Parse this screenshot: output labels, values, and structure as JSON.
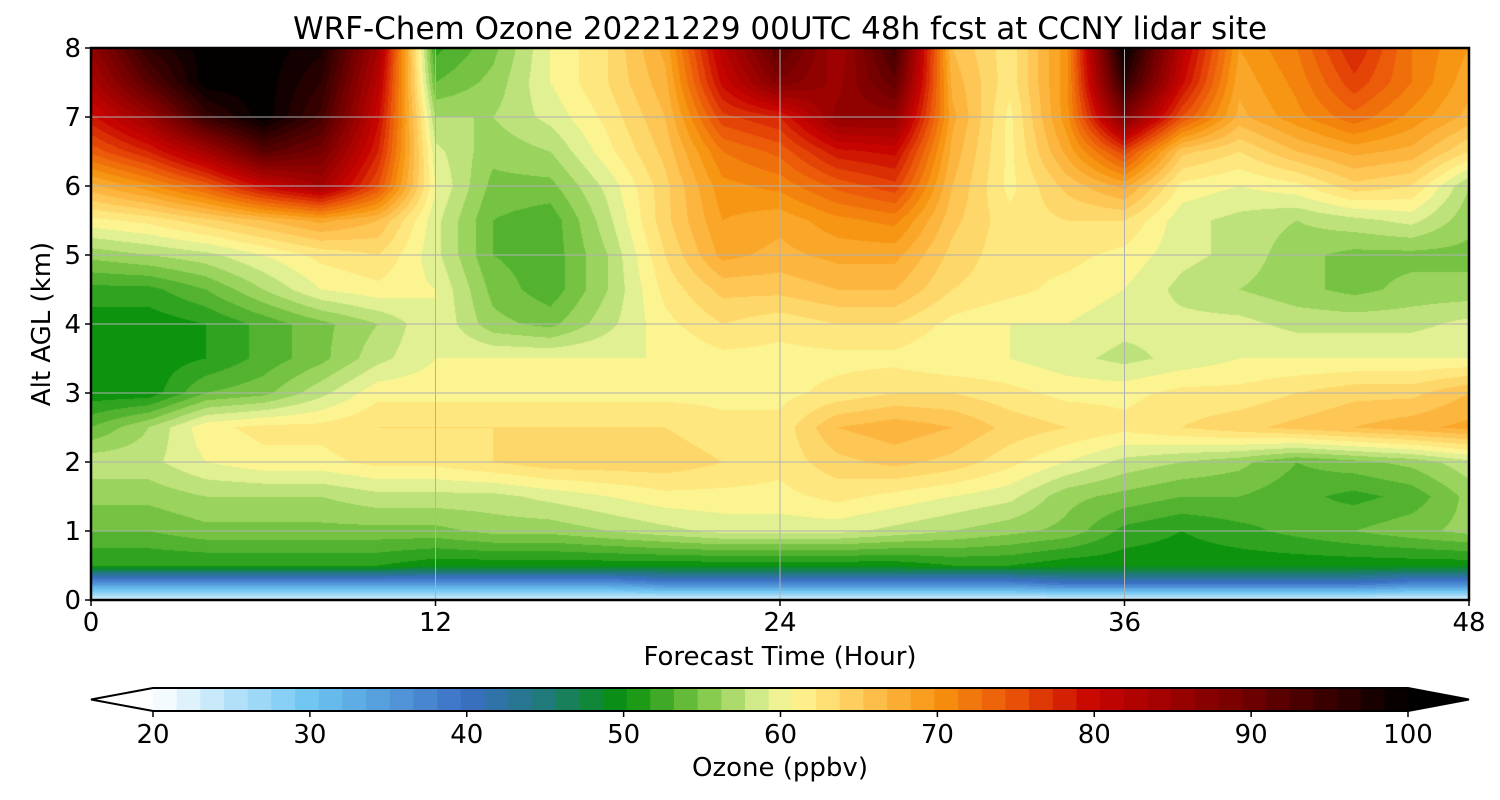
{
  "chart_data": {
    "type": "heatmap",
    "title": "WRF-Chem Ozone  20221229 00UTC 48h fcst at CCNY lidar site",
    "xlabel": "Forecast Time (Hour)",
    "ylabel": "Alt AGL (km)",
    "xlim": [
      0,
      48
    ],
    "ylim": [
      0,
      8
    ],
    "x_ticks": [
      "0",
      "12",
      "24",
      "36",
      "48"
    ],
    "y_ticks": [
      "0",
      "1",
      "2",
      "3",
      "4",
      "5",
      "6",
      "7",
      "8"
    ],
    "grid": true,
    "colorbar": {
      "label": "Ozone  (ppbv)",
      "min": 20,
      "max": 100,
      "extend": "both",
      "ticks": [
        "20",
        "30",
        "40",
        "50",
        "60",
        "70",
        "80",
        "90",
        "100"
      ],
      "color_stops": [
        {
          "value": 20,
          "color": "#ffffff"
        },
        {
          "value": 30,
          "color": "#6ec5f2"
        },
        {
          "value": 40,
          "color": "#3a6fc4"
        },
        {
          "value": 45,
          "color": "#1f7a7a"
        },
        {
          "value": 50,
          "color": "#07900b"
        },
        {
          "value": 55,
          "color": "#7cc646"
        },
        {
          "value": 59,
          "color": "#dcef93"
        },
        {
          "value": 61,
          "color": "#fff591"
        },
        {
          "value": 66,
          "color": "#fdbe4a"
        },
        {
          "value": 70,
          "color": "#f7930f"
        },
        {
          "value": 75,
          "color": "#e95108"
        },
        {
          "value": 80,
          "color": "#c80400"
        },
        {
          "value": 90,
          "color": "#6e0000"
        },
        {
          "value": 100,
          "color": "#000000"
        }
      ]
    },
    "units": {
      "x": "hour",
      "y": "km",
      "value": "ppbv"
    },
    "hours": [
      0,
      2,
      4,
      6,
      8,
      10,
      12,
      14,
      16,
      18,
      20,
      22,
      24,
      26,
      28,
      30,
      32,
      34,
      36,
      38,
      40,
      42,
      44,
      46,
      48
    ],
    "altitudes_km": [
      0,
      0.25,
      0.5,
      1,
      1.5,
      2,
      2.5,
      3,
      3.5,
      4,
      4.5,
      5,
      5.5,
      6,
      6.5,
      7,
      7.5,
      8
    ],
    "ozone_ppbv": [
      [
        22,
        22,
        22,
        22,
        22,
        22,
        22,
        22,
        22,
        22,
        22,
        22,
        22,
        22,
        22,
        22,
        22,
        22,
        22,
        22,
        22,
        22,
        22,
        22,
        22
      ],
      [
        36,
        36,
        36,
        36,
        36,
        36,
        36,
        36,
        36,
        36,
        38,
        38,
        38,
        38,
        38,
        38,
        38,
        40,
        40,
        40,
        40,
        40,
        40,
        38,
        38
      ],
      [
        51,
        51,
        51,
        51,
        51,
        51,
        50,
        50,
        50,
        50,
        50,
        50,
        50,
        50,
        50,
        51,
        51,
        50,
        50,
        50,
        50,
        50,
        50,
        50,
        50
      ],
      [
        54,
        54,
        55,
        55,
        55,
        55,
        55,
        56,
        56,
        57,
        58,
        59,
        59,
        59,
        58,
        57,
        56,
        55,
        52,
        51,
        52,
        53,
        54,
        55,
        56
      ],
      [
        56,
        56,
        57,
        57,
        57,
        58,
        58,
        58,
        59,
        60,
        61,
        61,
        61,
        62,
        61,
        60,
        59,
        56,
        55,
        54,
        54,
        53,
        52,
        53,
        56
      ],
      [
        58,
        58,
        60,
        61,
        61,
        62,
        62,
        63,
        64,
        64,
        64,
        63,
        62,
        64,
        65,
        64,
        62,
        60,
        58,
        57,
        56,
        54,
        55,
        56,
        58
      ],
      [
        54,
        57,
        61,
        62,
        62,
        63,
        63,
        63,
        63,
        63,
        63,
        62,
        62,
        66,
        67,
        66,
        64,
        63,
        62,
        63,
        64,
        65,
        66,
        67,
        68
      ],
      [
        50,
        50,
        54,
        55,
        58,
        61,
        61,
        61,
        61,
        61,
        61,
        61,
        61,
        62,
        63,
        63,
        62,
        61,
        61,
        62,
        62,
        63,
        64,
        64,
        66
      ],
      [
        50,
        50,
        51,
        53,
        55,
        58,
        60,
        60,
        60,
        60,
        60,
        61,
        61,
        61,
        61,
        60,
        60,
        59,
        58,
        59,
        60,
        60,
        60,
        60,
        60
      ],
      [
        50,
        50,
        51,
        53,
        55,
        57,
        60,
        56,
        55,
        58,
        61,
        63,
        62,
        63,
        63,
        61,
        60,
        60,
        59,
        59,
        59,
        58,
        58,
        58,
        59
      ],
      [
        52,
        52,
        54,
        57,
        60,
        61,
        60,
        55,
        53,
        57,
        62,
        65,
        65,
        66,
        66,
        63,
        62,
        61,
        60,
        58,
        57,
        56,
        55,
        56,
        56
      ],
      [
        56,
        57,
        58,
        60,
        62,
        63,
        59,
        54,
        53,
        57,
        63,
        68,
        67,
        68,
        68,
        64,
        62,
        62,
        61,
        59,
        58,
        56,
        55,
        55,
        55
      ],
      [
        61,
        62,
        64,
        66,
        68,
        66,
        59,
        54,
        53,
        58,
        64,
        69,
        68,
        70,
        71,
        65,
        62,
        63,
        63,
        59,
        58,
        57,
        58,
        59,
        56
      ],
      [
        67,
        70,
        74,
        80,
        84,
        75,
        60,
        55,
        55,
        59,
        64,
        70,
        71,
        74,
        76,
        66,
        61,
        65,
        68,
        61,
        60,
        61,
        64,
        63,
        57
      ],
      [
        74,
        78,
        84,
        92,
        89,
        78,
        59,
        56,
        57,
        61,
        65,
        72,
        74,
        79,
        80,
        67,
        61,
        68,
        76,
        65,
        63,
        66,
        68,
        67,
        63
      ],
      [
        79,
        85,
        95,
        100,
        94,
        80,
        57,
        57,
        59,
        62,
        66,
        76,
        78,
        86,
        86,
        68,
        61,
        70,
        88,
        75,
        67,
        70,
        73,
        70,
        67
      ],
      [
        83,
        92,
        100,
        100,
        96,
        82,
        54,
        56,
        60,
        63,
        67,
        80,
        88,
        85,
        91,
        67,
        62,
        70,
        96,
        80,
        68,
        71,
        76,
        72,
        68
      ],
      [
        86,
        96,
        100,
        100,
        98,
        84,
        52,
        55,
        60,
        63,
        68,
        82,
        92,
        84,
        94,
        66,
        62,
        70,
        100,
        82,
        69,
        72,
        78,
        72,
        69
      ]
    ]
  }
}
